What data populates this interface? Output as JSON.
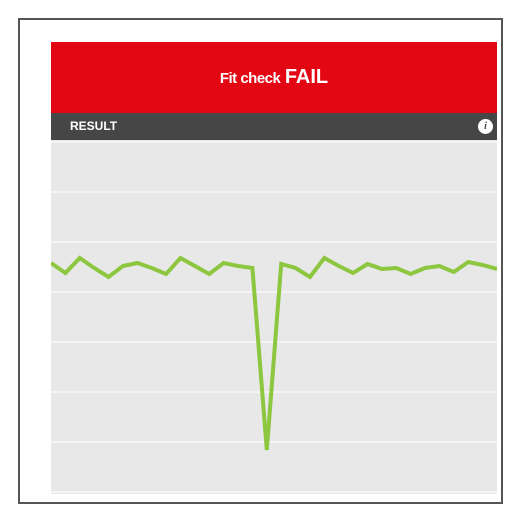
{
  "header": {
    "title": "Fit check",
    "status": "FAIL"
  },
  "subheader": {
    "label": "RESULT"
  },
  "chart_data": {
    "type": "line",
    "color": "#8dc63f",
    "grid": true,
    "values": [
      4.58,
      4.38,
      4.68,
      4.48,
      4.3,
      4.52,
      4.58,
      4.48,
      4.36,
      4.68,
      4.52,
      4.36,
      4.58,
      4.52,
      4.48,
      0.84,
      4.56,
      4.48,
      4.3,
      4.68,
      4.52,
      4.38,
      4.56,
      4.46,
      4.48,
      4.36,
      4.48,
      4.52,
      4.4,
      4.6,
      4.54,
      4.46
    ],
    "ylim": [
      0,
      7
    ],
    "yticks": [
      0,
      1,
      2,
      3,
      4,
      5,
      6,
      7
    ]
  }
}
